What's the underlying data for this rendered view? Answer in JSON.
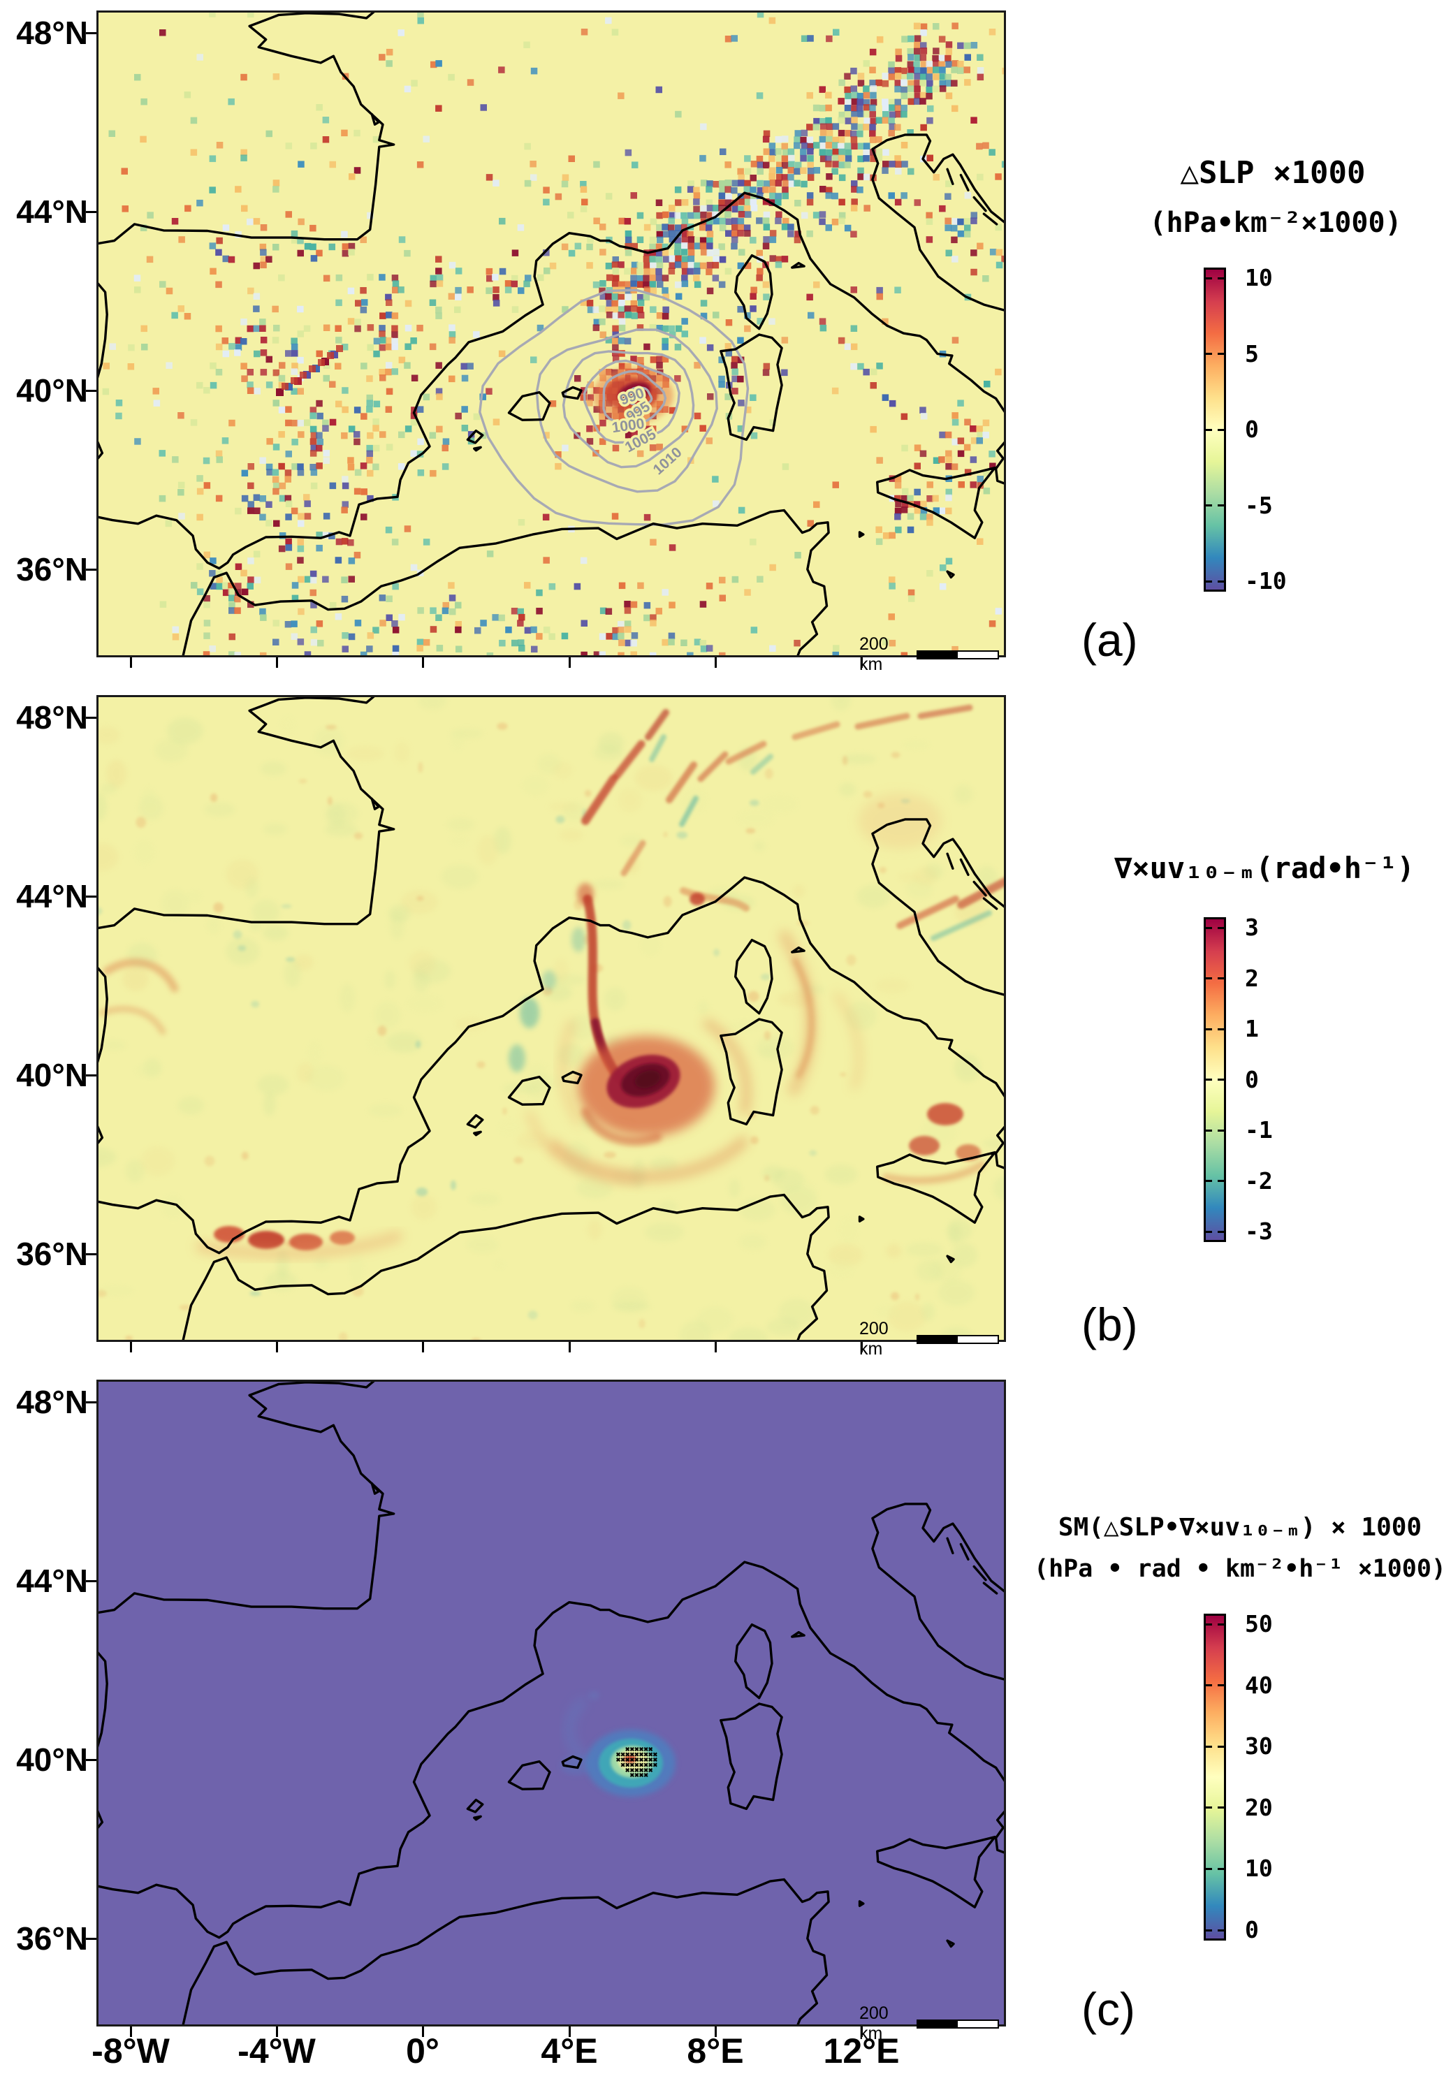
{
  "figure": {
    "panels": [
      {
        "id": "a",
        "label": "(a)",
        "colorbar": {
          "title_lines": [
            "△SLP ×1000",
            "(hPa•km⁻²×1000)"
          ],
          "ticks": [
            "10",
            "5",
            "0",
            "-5",
            "-10"
          ],
          "range": [
            -10,
            10
          ]
        }
      },
      {
        "id": "b",
        "label": "(b)",
        "colorbar": {
          "title_lines": [
            "∇×uv₁₀₋ₘ(rad•h⁻¹)"
          ],
          "ticks": [
            "3",
            "2",
            "1",
            "0",
            "-1",
            "-2",
            "-3"
          ],
          "range": [
            -3,
            3
          ]
        }
      },
      {
        "id": "c",
        "label": "(c)",
        "colorbar": {
          "title_lines": [
            "SM(△SLP•∇×uv₁₀₋ₘ) × 1000",
            "(hPa • rad • km⁻²•h⁻¹ ×1000)"
          ],
          "ticks": [
            "50",
            "40",
            "30",
            "20",
            "10",
            "0"
          ],
          "range": [
            0,
            50
          ]
        }
      }
    ],
    "axes": {
      "lat_labels": [
        "48°N",
        "44°N",
        "40°N",
        "36°N"
      ],
      "lon_labels": [
        "-8°W",
        "-4°W",
        "0°",
        "4°E",
        "8°E",
        "12°E"
      ]
    },
    "scale_bar_text": "200 km",
    "slp_contour_labels": [
      "990",
      "995",
      "1000",
      "1005",
      "1010"
    ],
    "colors": {
      "spectral_top": "#9e0142",
      "spectral_zero": "#ffffbf",
      "spectral_bottom": "#5e4fa2",
      "panel_ab_background": "#f4f1a6",
      "panel_c_background": "#6f63ac",
      "coastline": "#000000",
      "slp_contour_gray": "#a7a9b4"
    }
  },
  "chart_data": [
    {
      "type": "heatmap",
      "panel": "a",
      "title": "△SLP ×1000",
      "units": "hPa•km⁻²×1000",
      "colormap": "Spectral (max dark-red, 0 pale-yellow, min indigo)",
      "value_range": [
        -10,
        10
      ],
      "colorbar_ticks": [
        10,
        5,
        0,
        -5,
        -10
      ],
      "lon_range_deg": [
        -9,
        16
      ],
      "lat_range_deg": [
        34,
        48.5
      ],
      "x_tick_labels": [
        "-8°W",
        "-4°W",
        "0°",
        "4°E",
        "8°E",
        "12°E"
      ],
      "y_tick_labels": [
        "48°N",
        "44°N",
        "40°N",
        "36°N"
      ],
      "overlays": {
        "slp_contours_hPa": [
          990,
          995,
          1000,
          1005,
          1010
        ],
        "cyclone_center_lonlat": [
          5.8,
          39.8
        ],
        "scale_bar": "200 km"
      },
      "description": "Speckled positive/negative SLP Laplacian noise concentrated over orography (strongest ±10 band along the Alps); red maximum at medicane centre surrounded by concentric gray SLP contours (minimum ~990 hPa)"
    },
    {
      "type": "heatmap",
      "panel": "b",
      "title": "∇×uv₁₀₋ₘ(rad•h⁻¹)",
      "units": "rad•h⁻¹",
      "colormap": "Spectral",
      "value_range": [
        -3,
        3
      ],
      "colorbar_ticks": [
        3,
        2,
        1,
        0,
        -1,
        -2,
        -3
      ],
      "lon_range_deg": [
        -9,
        16
      ],
      "lat_range_deg": [
        34,
        48.5
      ],
      "overlays": {
        "cyclone_center_lonlat": [
          5.8,
          39.8
        ],
        "scale_bar": "200 km"
      },
      "description": "Smooth 10-m wind curl field: dark-red vorticity maximum (~3) at the medicane centre east of the Balearic Islands with a trailing filament toward the Gulf of Lion; weak orange shear lines elsewhere"
    },
    {
      "type": "heatmap",
      "panel": "c",
      "title": "SM(△SLP•∇×uv₁₀₋ₘ) × 1000",
      "units": "hPa•rad•km⁻²•h⁻¹×1000",
      "colormap": "Spectral",
      "value_range": [
        0,
        50
      ],
      "colorbar_ticks": [
        50,
        40,
        30,
        20,
        10,
        0
      ],
      "lon_range_deg": [
        -9,
        16
      ],
      "lat_range_deg": [
        34,
        48.5
      ],
      "overlays": {
        "stippling": "black markers over statistically-flagged core",
        "scale_bar": "200 km"
      },
      "description": "Product field ~0 (indigo) everywhere except one localized blue-teal-yellow maximum (~30-50) at the medicane centre, stippled with black markers"
    }
  ]
}
